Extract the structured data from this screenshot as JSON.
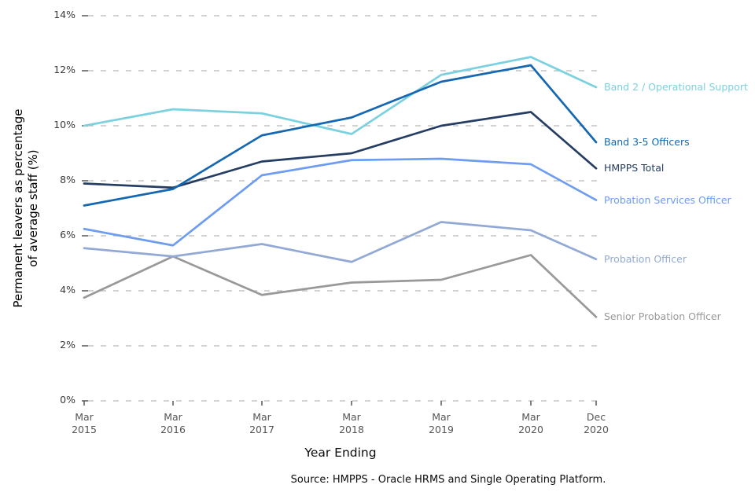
{
  "chart_data": {
    "type": "line",
    "title": "",
    "xlabel": "Year Ending",
    "ylabel": "Permanent leavers as percentage\nof average staff (%)",
    "ylim": [
      0,
      14
    ],
    "y_ticks": [
      0,
      2,
      4,
      6,
      8,
      10,
      12,
      14
    ],
    "y_tick_suffix": "%",
    "grid": "horizontal-dashed",
    "legend_position": "right-end-labels",
    "categories": [
      "Mar\n2015",
      "Mar\n2016",
      "Mar\n2017",
      "Mar\n2018",
      "Mar\n2019",
      "Mar\n2020",
      "Dec\n2020"
    ],
    "series": [
      {
        "name": "Senior Probation Officer",
        "color": "#999999",
        "values": [
          3.75,
          5.25,
          3.85,
          4.3,
          4.4,
          5.3,
          3.05
        ]
      },
      {
        "name": "Probation Officer",
        "color": "#92a9d6",
        "values": [
          5.55,
          5.25,
          5.7,
          5.05,
          6.5,
          6.2,
          5.15
        ]
      },
      {
        "name": "Probation Services Officer",
        "color": "#6d9cf1",
        "values": [
          6.25,
          5.65,
          8.2,
          8.75,
          8.8,
          8.6,
          7.3
        ]
      },
      {
        "name": "Band 2 / Operational Support",
        "color": "#7bd1df",
        "values": [
          10.0,
          10.6,
          10.45,
          9.7,
          11.85,
          12.5,
          11.4
        ]
      },
      {
        "name": "HMPPS Total",
        "color": "#253c63",
        "values": [
          7.9,
          7.75,
          8.7,
          9.0,
          10.0,
          10.5,
          8.45
        ]
      },
      {
        "name": "Band 3-5 Officers",
        "color": "#1467b0",
        "values": [
          7.1,
          7.7,
          9.65,
          10.3,
          11.6,
          12.2,
          9.4
        ]
      }
    ],
    "axis_colors": {
      "gridline": "#c4c4c4",
      "tick": "#555555"
    }
  },
  "footer": {
    "source": "Source: HMPPS - Oracle HRMS and Single Operating Platform."
  }
}
